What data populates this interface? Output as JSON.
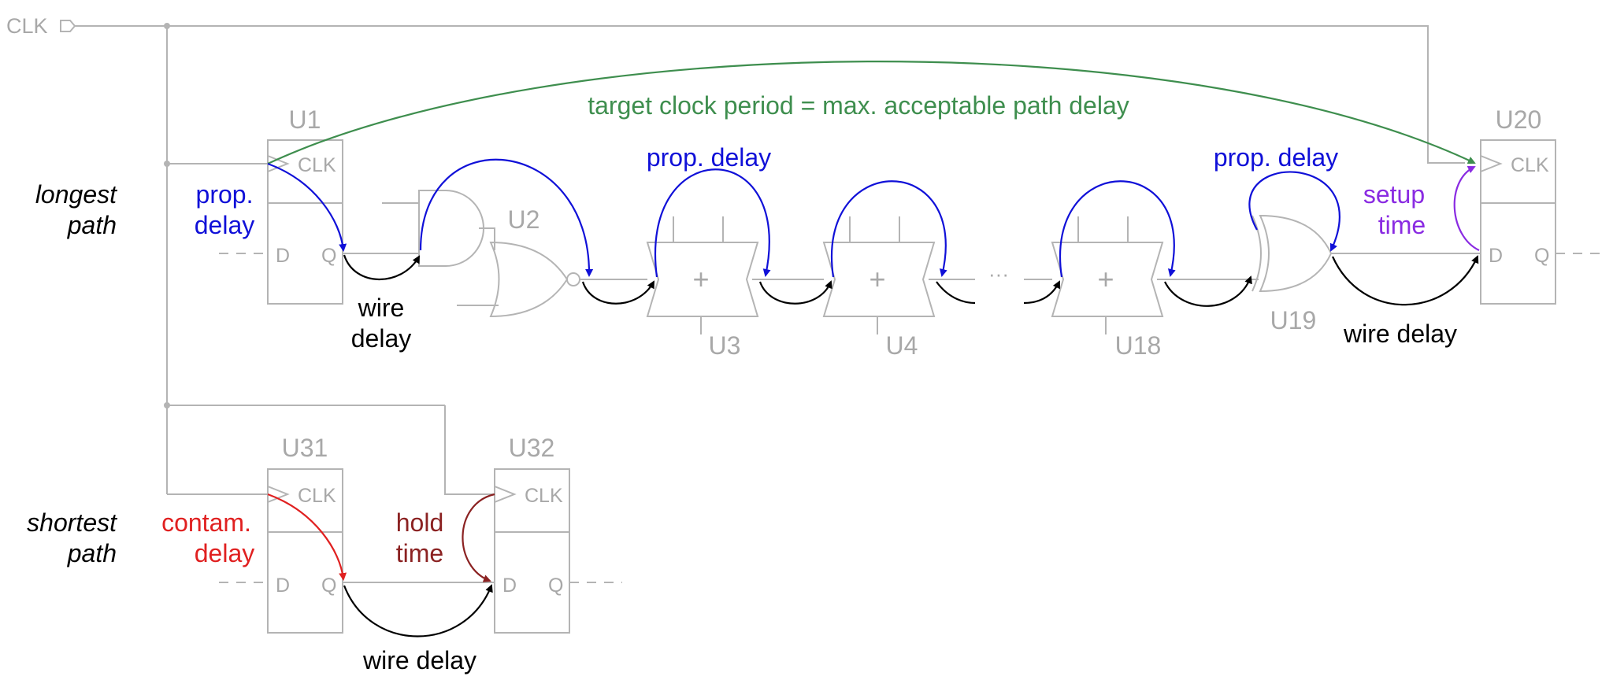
{
  "clock": {
    "label": "CLK"
  },
  "row_labels": {
    "longest": [
      "longest",
      "path"
    ],
    "shortest": [
      "shortest",
      "path"
    ]
  },
  "components": {
    "u1": "U1",
    "u2": "U2",
    "u3": "U3",
    "u4": "U4",
    "u18": "U18",
    "u19": "U19",
    "u20": "U20",
    "u31": "U31",
    "u32": "U32"
  },
  "pins": {
    "clk": "CLK",
    "d": "D",
    "q": "Q"
  },
  "adder_symbol": "+",
  "ellipsis": "···",
  "annotations": {
    "target_clock": "target clock period = max. acceptable path delay",
    "prop_delay_left": [
      "prop.",
      "delay"
    ],
    "prop_delay_top": "prop. delay",
    "prop_delay_right": "prop. delay",
    "wire_delay_stacked": [
      "wire",
      "delay"
    ],
    "wire_delay_right": "wire delay",
    "setup_time": [
      "setup",
      "time"
    ],
    "contam_delay": [
      "contam.",
      "delay"
    ],
    "hold_time": [
      "hold",
      "time"
    ],
    "wire_delay_bottom": "wire delay"
  },
  "colors": {
    "prop_delay": "#1010d8",
    "wire_delay": "#000000",
    "setup_time": "#8a2be2",
    "target_clock": "#3e8e4e",
    "contam_delay": "#e02020",
    "hold_time": "#8b2222",
    "component": "#a8a8a8"
  }
}
